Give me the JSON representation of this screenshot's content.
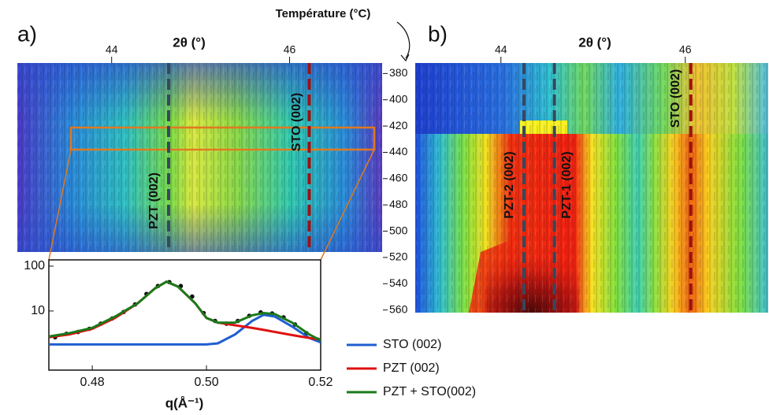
{
  "figure": {
    "temperature_title": "Température (°C)",
    "temperature_lim": [
      372,
      562
    ],
    "temperature_ticks": [
      380,
      400,
      420,
      440,
      460,
      480,
      500,
      520,
      540,
      560
    ]
  },
  "panel_a": {
    "label": "a)",
    "x_title": "2θ (°)",
    "xlim": [
      42.94,
      47.04
    ],
    "xticks": [
      44,
      46
    ],
    "lines": [
      {
        "label": "PZT (002)",
        "x": 44.64,
        "color": "#34495e"
      },
      {
        "label": "STO (002)",
        "x": 46.22,
        "color": "#a01010"
      }
    ]
  },
  "panel_b": {
    "label": "b)",
    "x_title": "2θ (°)",
    "xlim": [
      43.07,
      46.9
    ],
    "xticks": [
      44,
      46
    ],
    "lines": [
      {
        "label": "PZT-2 (002)",
        "x": 44.25,
        "color": "#34495e"
      },
      {
        "label": "PZT-1 (002)",
        "x": 44.58,
        "color": "#34495e"
      },
      {
        "label": "STO (002)",
        "x": 46.06,
        "color": "#a01010"
      }
    ]
  },
  "chart_data": {
    "type": "line",
    "xlabel": "q(Å⁻¹)",
    "log_y": true,
    "xlim": [
      0.4724,
      0.52
    ],
    "xticks": [
      0.48,
      {
        "value": 0.5,
        "label": "0.50"
      },
      0.52
    ],
    "ylim": [
      0.48,
      138
    ],
    "yticks": [
      10,
      100
    ],
    "x": [
      0.4724,
      0.476,
      0.48,
      0.484,
      0.488,
      0.491,
      0.493,
      0.495,
      0.498,
      0.5,
      0.502,
      0.505,
      0.508,
      0.51,
      0.512,
      0.515,
      0.518,
      0.52
    ],
    "series": [
      {
        "name": "STO (002)",
        "color": "#1f5fd0",
        "values": [
          1.8,
          1.8,
          1.8,
          1.8,
          1.8,
          1.8,
          1.8,
          1.8,
          1.8,
          1.8,
          1.9,
          3,
          6,
          8.2,
          7.5,
          4.5,
          2.5,
          2
        ]
      },
      {
        "name": "PZT (002)",
        "color": "#e01010",
        "values": [
          2.6,
          3,
          4,
          7,
          15,
          32,
          45,
          35,
          15,
          7,
          5.5,
          4.8,
          4.2,
          3.8,
          3.4,
          2.9,
          2.5,
          2.3
        ]
      },
      {
        "name": "PZT + STO(002)",
        "color": "#1a7a1a",
        "values": [
          2.7,
          3.2,
          4.2,
          7.5,
          15,
          32,
          45,
          35,
          15,
          7,
          5.5,
          5.5,
          8,
          9,
          8.5,
          5.5,
          3,
          2.2
        ]
      }
    ],
    "points": {
      "x": [
        0.4735,
        0.4755,
        0.4775,
        0.4795,
        0.4815,
        0.4835,
        0.4855,
        0.4875,
        0.4895,
        0.4915,
        0.4935,
        0.4955,
        0.4975,
        0.4995,
        0.5015,
        0.5035,
        0.5055,
        0.5075,
        0.5095,
        0.5115,
        0.5135,
        0.5155,
        0.5175,
        0.5195
      ],
      "values": [
        2.6,
        3.1,
        3.4,
        4.0,
        5.2,
        6.8,
        9.5,
        14,
        24,
        36,
        44,
        36,
        21,
        9,
        6,
        5.2,
        6,
        7.8,
        9.3,
        8.8,
        7.2,
        5,
        3.2,
        2.3
      ]
    }
  }
}
